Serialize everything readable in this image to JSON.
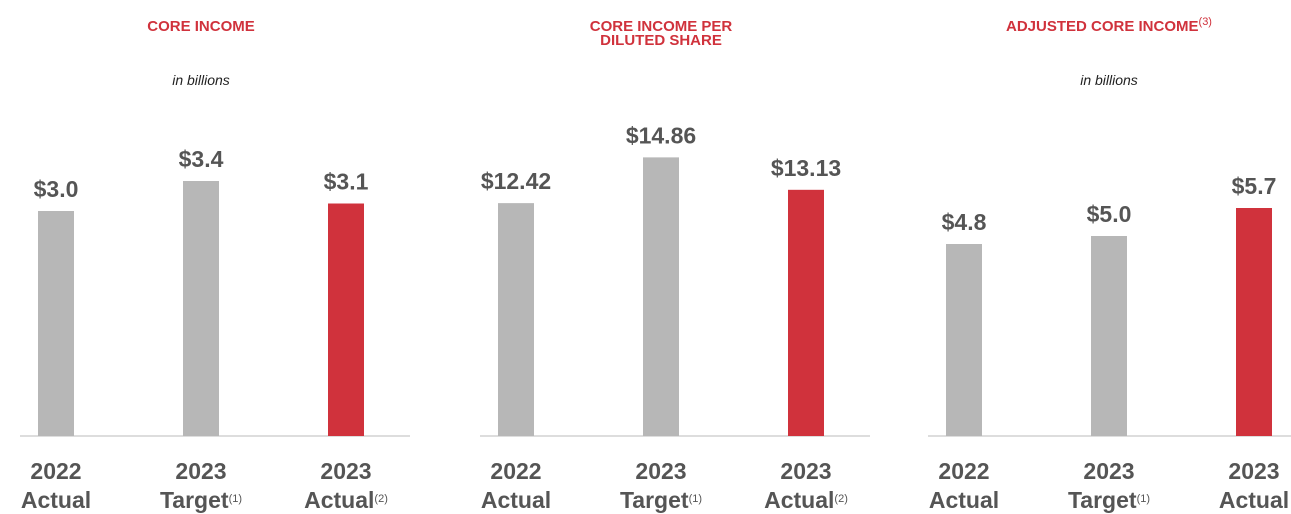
{
  "chart_data": [
    {
      "type": "bar",
      "title": "CORE INCOME",
      "subtitle": "in billions",
      "categories": [
        [
          "2022",
          "Actual"
        ],
        [
          "2023",
          "Target"
        ],
        [
          "2023",
          "Actual"
        ]
      ],
      "category_notes": [
        null,
        "(1)",
        "(2)"
      ],
      "values": [
        3.0,
        3.4,
        3.1
      ],
      "value_labels": [
        "$3.0",
        "$3.4",
        "$3.1"
      ],
      "colors": [
        "#b7b7b7",
        "#b7b7b7",
        "#d0323c"
      ],
      "ylim": [
        0,
        4
      ]
    },
    {
      "type": "bar",
      "title": [
        "CORE INCOME PER",
        "DILUTED SHARE"
      ],
      "categories": [
        [
          "2022",
          "Actual"
        ],
        [
          "2023",
          "Target"
        ],
        [
          "2023",
          "Actual"
        ]
      ],
      "category_notes": [
        null,
        "(1)",
        "(2)"
      ],
      "values": [
        12.42,
        14.86,
        13.13
      ],
      "value_labels": [
        "$12.42",
        "$14.86",
        "$13.13"
      ],
      "colors": [
        "#b7b7b7",
        "#b7b7b7",
        "#d0323c"
      ],
      "ylim": [
        0,
        16
      ]
    },
    {
      "type": "bar",
      "title": "ADJUSTED CORE INCOME",
      "title_note": "(3)",
      "subtitle": "in billions",
      "categories": [
        [
          "2022",
          "Actual"
        ],
        [
          "2023",
          "Target"
        ],
        [
          "2023",
          "Actual"
        ]
      ],
      "category_notes": [
        null,
        "(1)",
        null
      ],
      "values": [
        4.8,
        5.0,
        5.7
      ],
      "value_labels": [
        "$4.8",
        "$5.0",
        "$5.7"
      ],
      "colors": [
        "#b7b7b7",
        "#b7b7b7",
        "#d0323c"
      ],
      "ylim": [
        0,
        7.5
      ]
    }
  ]
}
